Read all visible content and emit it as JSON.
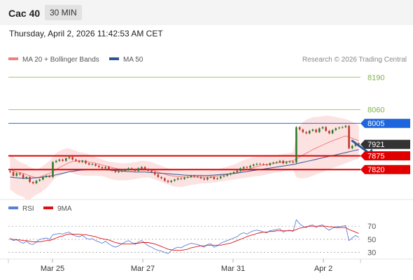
{
  "header": {
    "title": "Cac 40",
    "timeframe": "30 MIN"
  },
  "datetime": "Thursday, April 2, 2026 11:42:53 AM CET",
  "legend_main": [
    {
      "label": "MA 20 + Bollinger Bands",
      "color": "#f08080"
    },
    {
      "label": "MA 50",
      "color": "#2f5597"
    }
  ],
  "copyright": "Research © 2026 Trading Central",
  "legend_rsi": [
    {
      "label": "RSI",
      "color": "#5b7fd6"
    },
    {
      "label": "9MA",
      "color": "#e01010"
    }
  ],
  "colors": {
    "resistance_green": "#7cb342",
    "pivot_blue": "#1e64dc",
    "support_red": "#e00000",
    "candle_up": "#2c7a2c",
    "candle_down": "#c0392b",
    "band_fill": "#fde2e2",
    "price_tag": "#333333",
    "arrow": "#2b5c9c"
  },
  "chart_data": [
    {
      "type": "candlestick",
      "title": "Cac 40",
      "x_ticks": [
        "Mar 25",
        "Mar 27",
        "Mar 31",
        "Apr 2"
      ],
      "ylim": [
        7700,
        8230
      ],
      "levels": [
        {
          "value": 8190,
          "label": "8190",
          "kind": "resistance"
        },
        {
          "value": 8060,
          "label": "8060",
          "kind": "resistance"
        },
        {
          "value": 8005,
          "label": "8005",
          "kind": "pivot"
        },
        {
          "value": 7921,
          "label": "7921",
          "kind": "last_price"
        },
        {
          "value": 7875,
          "label": "7875",
          "kind": "support"
        },
        {
          "value": 7820,
          "label": "7820",
          "kind": "support"
        }
      ],
      "close": [
        7810,
        7795,
        7805,
        7800,
        7785,
        7790,
        7770,
        7765,
        7775,
        7780,
        7790,
        7795,
        7790,
        7850,
        7855,
        7860,
        7855,
        7865,
        7870,
        7860,
        7855,
        7850,
        7855,
        7845,
        7840,
        7842,
        7835,
        7830,
        7825,
        7830,
        7822,
        7815,
        7810,
        7812,
        7815,
        7820,
        7825,
        7820,
        7815,
        7825,
        7830,
        7822,
        7815,
        7810,
        7800,
        7790,
        7785,
        7775,
        7770,
        7775,
        7780,
        7785,
        7782,
        7788,
        7790,
        7795,
        7792,
        7790,
        7785,
        7780,
        7788,
        7790,
        7782,
        7785,
        7792,
        7795,
        7800,
        7805,
        7810,
        7815,
        7825,
        7830,
        7828,
        7835,
        7840,
        7843,
        7842,
        7840,
        7838,
        7845,
        7848,
        7850,
        7855,
        7845,
        7850,
        7852,
        7848,
        7990,
        7980,
        7970,
        7965,
        7975,
        7980,
        7970,
        7985,
        7990,
        7975,
        7965,
        7978,
        7985,
        7988,
        7990,
        7995,
        7905,
        7915,
        7925,
        7921
      ],
      "ma20": [
        7820,
        7815,
        7810,
        7808,
        7805,
        7800,
        7795,
        7790,
        7788,
        7790,
        7795,
        7800,
        7805,
        7812,
        7820,
        7828,
        7835,
        7842,
        7848,
        7852,
        7854,
        7855,
        7855,
        7853,
        7850,
        7848,
        7845,
        7842,
        7838,
        7835,
        7832,
        7828,
        7825,
        7822,
        7820,
        7820,
        7821,
        7822,
        7822,
        7823,
        7824,
        7823,
        7821,
        7818,
        7814,
        7810,
        7806,
        7802,
        7798,
        7795,
        7793,
        7792,
        7791,
        7790,
        7790,
        7790,
        7790,
        7790,
        7790,
        7790,
        7790,
        7791,
        7792,
        7794,
        7796,
        7798,
        7800,
        7802,
        7805,
        7808,
        7812,
        7816,
        7820,
        7824,
        7828,
        7832,
        7835,
        7838,
        7840,
        7842,
        7844,
        7846,
        7848,
        7850,
        7852,
        7854,
        7856,
        7862,
        7870,
        7878,
        7885,
        7892,
        7900,
        7906,
        7912,
        7918,
        7924,
        7930,
        7935,
        7940,
        7945,
        7950,
        7955,
        7950,
        7945,
        7940,
        7935
      ],
      "ma50": [
        7790,
        7788,
        7787,
        7786,
        7785,
        7785,
        7785,
        7786,
        7787,
        7788,
        7790,
        7792,
        7794,
        7796,
        7799,
        7802,
        7805,
        7808,
        7811,
        7813,
        7815,
        7817,
        7818,
        7819,
        7820,
        7820,
        7820,
        7820,
        7820,
        7819,
        7818,
        7817,
        7816,
        7815,
        7814,
        7813,
        7812,
        7811,
        7810,
        7810,
        7810,
        7810,
        7809,
        7808,
        7807,
        7806,
        7805,
        7804,
        7803,
        7802,
        7801,
        7800,
        7799,
        7798,
        7797,
        7796,
        7796,
        7796,
        7796,
        7796,
        7796,
        7797,
        7798,
        7799,
        7800,
        7801,
        7802,
        7803,
        7804,
        7806,
        7808,
        7810,
        7812,
        7814,
        7816,
        7818,
        7820,
        7822,
        7824,
        7826,
        7828,
        7830,
        7832,
        7834,
        7836,
        7838,
        7840,
        7843,
        7846,
        7849,
        7852,
        7855,
        7858,
        7861,
        7864,
        7867,
        7870,
        7873,
        7876,
        7879,
        7882,
        7885,
        7888,
        7891,
        7894,
        7897,
        7900
      ],
      "bb_upper": [
        7880,
        7870,
        7860,
        7850,
        7845,
        7840,
        7830,
        7825,
        7822,
        7825,
        7835,
        7845,
        7855,
        7870,
        7885,
        7895,
        7900,
        7905,
        7905,
        7900,
        7895,
        7890,
        7888,
        7885,
        7880,
        7875,
        7870,
        7865,
        7860,
        7855,
        7852,
        7850,
        7848,
        7846,
        7845,
        7845,
        7846,
        7848,
        7850,
        7852,
        7855,
        7855,
        7853,
        7850,
        7845,
        7840,
        7835,
        7830,
        7825,
        7822,
        7820,
        7818,
        7816,
        7815,
        7815,
        7815,
        7815,
        7815,
        7815,
        7815,
        7815,
        7816,
        7818,
        7820,
        7824,
        7828,
        7832,
        7836,
        7840,
        7845,
        7852,
        7858,
        7862,
        7866,
        7870,
        7872,
        7873,
        7874,
        7875,
        7876,
        7877,
        7878,
        7880,
        7882,
        7884,
        7886,
        7890,
        7950,
        7990,
        8010,
        8020,
        8025,
        8030,
        8030,
        8032,
        8034,
        8036,
        8035,
        8033,
        8030,
        8028,
        8025,
        8022,
        8018,
        8012,
        8005,
        7995
      ],
      "bb_lower": [
        7740,
        7730,
        7720,
        7715,
        7710,
        7700,
        7700,
        7710,
        7720,
        7725,
        7735,
        7745,
        7760,
        7775,
        7790,
        7795,
        7800,
        7805,
        7810,
        7805,
        7800,
        7798,
        7796,
        7795,
        7795,
        7795,
        7795,
        7795,
        7793,
        7790,
        7785,
        7780,
        7778,
        7777,
        7777,
        7777,
        7778,
        7780,
        7782,
        7784,
        7786,
        7788,
        7788,
        7785,
        7780,
        7775,
        7770,
        7765,
        7760,
        7755,
        7752,
        7750,
        7750,
        7752,
        7755,
        7758,
        7760,
        7762,
        7764,
        7765,
        7765,
        7766,
        7768,
        7770,
        7772,
        7774,
        7776,
        7778,
        7780,
        7782,
        7784,
        7786,
        7788,
        7790,
        7792,
        7794,
        7795,
        7797,
        7800,
        7803,
        7806,
        7808,
        7810,
        7812,
        7814,
        7816,
        7818,
        7790,
        7785,
        7785,
        7786,
        7790,
        7795,
        7800,
        7805,
        7810,
        7815,
        7820,
        7825,
        7830,
        7835,
        7840,
        7845,
        7850,
        7855,
        7860,
        7865
      ]
    },
    {
      "type": "line",
      "title": "RSI",
      "ylim": [
        22,
        82
      ],
      "y_ticks": [
        70,
        50,
        30
      ],
      "series": [
        {
          "name": "RSI",
          "values": [
            52,
            48,
            50,
            46,
            44,
            47,
            43,
            42,
            46,
            50,
            51,
            52,
            50,
            57,
            58,
            59,
            58,
            60,
            61,
            57,
            55,
            54,
            56,
            52,
            50,
            51,
            48,
            46,
            44,
            47,
            43,
            40,
            38,
            40,
            43,
            46,
            48,
            45,
            42,
            46,
            48,
            44,
            40,
            38,
            35,
            33,
            32,
            30,
            28,
            33,
            36,
            38,
            37,
            40,
            42,
            44,
            43,
            42,
            40,
            38,
            42,
            43,
            38,
            40,
            44,
            46,
            48,
            50,
            52,
            54,
            58,
            60,
            58,
            61,
            63,
            64,
            63,
            61,
            60,
            63,
            64,
            65,
            66,
            61,
            63,
            64,
            62,
            80,
            74,
            70,
            68,
            71,
            72,
            68,
            71,
            72,
            67,
            64,
            67,
            69,
            69,
            70,
            71,
            48,
            52,
            56,
            53
          ]
        },
        {
          "name": "9MA",
          "values": [
            50,
            50,
            49,
            49,
            48,
            48,
            47,
            46,
            46,
            46,
            47,
            48,
            48,
            50,
            52,
            54,
            55,
            57,
            58,
            58,
            58,
            58,
            57,
            57,
            56,
            55,
            54,
            52,
            51,
            50,
            49,
            47,
            45,
            44,
            43,
            43,
            43,
            43,
            44,
            44,
            45,
            45,
            45,
            44,
            43,
            41,
            39,
            37,
            35,
            34,
            33,
            33,
            33,
            34,
            35,
            37,
            38,
            39,
            40,
            40,
            41,
            41,
            41,
            41,
            41,
            42,
            43,
            44,
            46,
            48,
            50,
            52,
            54,
            56,
            57,
            59,
            60,
            61,
            61,
            62,
            62,
            63,
            63,
            63,
            63,
            63,
            63,
            65,
            67,
            68,
            69,
            70,
            70,
            70,
            70,
            70,
            70,
            69,
            69,
            68,
            68,
            68,
            68,
            65,
            63,
            61,
            59
          ]
        }
      ]
    }
  ]
}
